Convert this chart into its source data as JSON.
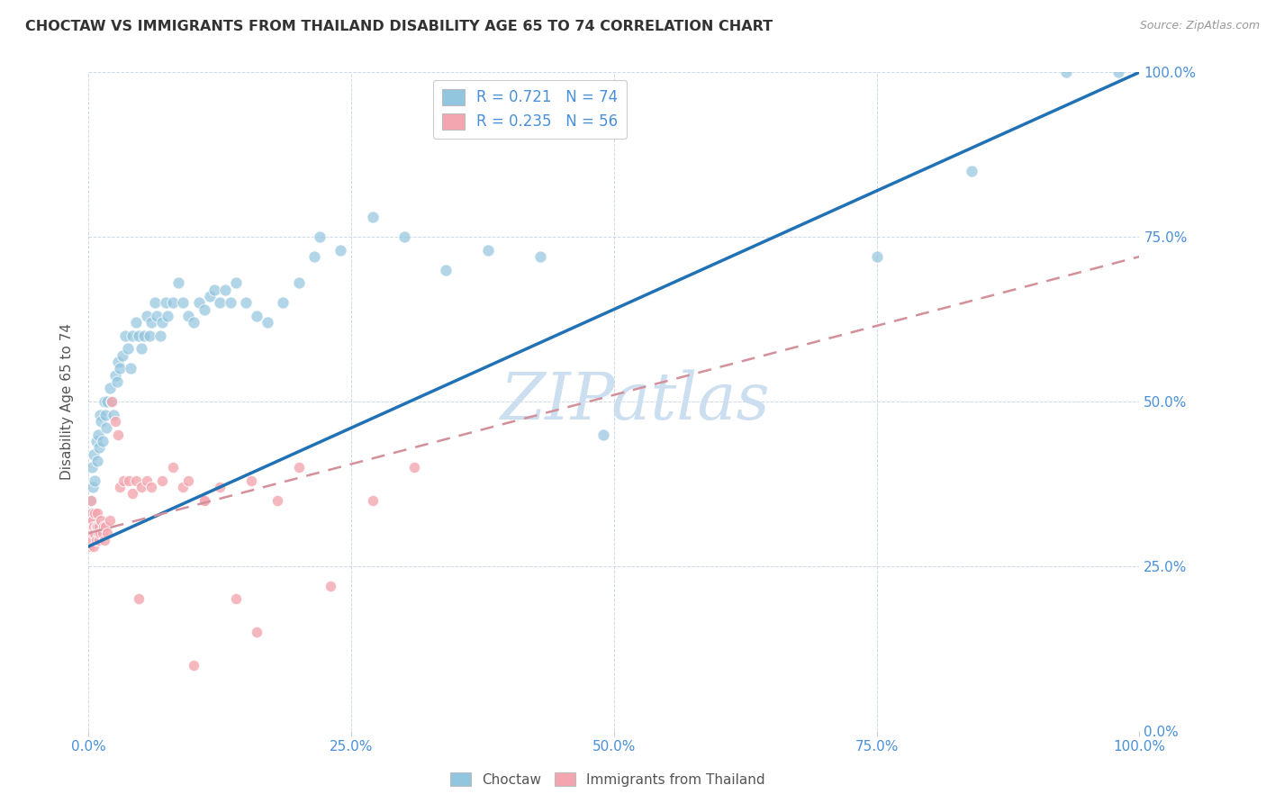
{
  "title": "CHOCTAW VS IMMIGRANTS FROM THAILAND DISABILITY AGE 65 TO 74 CORRELATION CHART",
  "source": "Source: ZipAtlas.com",
  "ylabel": "Disability Age 65 to 74",
  "xlim": [
    0,
    1.0
  ],
  "ylim": [
    0,
    1.0
  ],
  "ticks": [
    0.0,
    0.25,
    0.5,
    0.75,
    1.0
  ],
  "tick_labels": [
    "0.0%",
    "25.0%",
    "50.0%",
    "75.0%",
    "100.0%"
  ],
  "choctaw_color": "#92c5de",
  "thailand_color": "#f4a6b0",
  "choctaw_R": 0.721,
  "choctaw_N": 74,
  "thailand_R": 0.235,
  "thailand_N": 56,
  "choctaw_line_color": "#2171b5",
  "thailand_line_color": "#d4909a",
  "choctaw_line_x": [
    0.0,
    1.0
  ],
  "choctaw_line_y": [
    0.28,
    1.0
  ],
  "thailand_line_x": [
    0.0,
    1.0
  ],
  "thailand_line_y": [
    0.3,
    0.72
  ],
  "watermark": "ZIPatlas",
  "watermark_color": "#ccdff0",
  "choctaw_x": [
    0.001,
    0.002,
    0.003,
    0.003,
    0.004,
    0.005,
    0.006,
    0.007,
    0.008,
    0.009,
    0.01,
    0.011,
    0.012,
    0.013,
    0.015,
    0.016,
    0.017,
    0.018,
    0.02,
    0.022,
    0.024,
    0.025,
    0.027,
    0.028,
    0.03,
    0.032,
    0.035,
    0.037,
    0.04,
    0.042,
    0.045,
    0.048,
    0.05,
    0.053,
    0.055,
    0.058,
    0.06,
    0.063,
    0.065,
    0.068,
    0.07,
    0.073,
    0.075,
    0.08,
    0.085,
    0.09,
    0.095,
    0.1,
    0.105,
    0.11,
    0.115,
    0.12,
    0.125,
    0.13,
    0.135,
    0.14,
    0.15,
    0.16,
    0.17,
    0.185,
    0.2,
    0.215,
    0.22,
    0.24,
    0.27,
    0.3,
    0.34,
    0.38,
    0.43,
    0.49,
    0.75,
    0.84,
    0.93,
    0.98
  ],
  "choctaw_y": [
    0.3,
    0.35,
    0.33,
    0.4,
    0.37,
    0.42,
    0.38,
    0.44,
    0.41,
    0.45,
    0.43,
    0.48,
    0.47,
    0.44,
    0.5,
    0.48,
    0.46,
    0.5,
    0.52,
    0.5,
    0.48,
    0.54,
    0.53,
    0.56,
    0.55,
    0.57,
    0.6,
    0.58,
    0.55,
    0.6,
    0.62,
    0.6,
    0.58,
    0.6,
    0.63,
    0.6,
    0.62,
    0.65,
    0.63,
    0.6,
    0.62,
    0.65,
    0.63,
    0.65,
    0.68,
    0.65,
    0.63,
    0.62,
    0.65,
    0.64,
    0.66,
    0.67,
    0.65,
    0.67,
    0.65,
    0.68,
    0.65,
    0.63,
    0.62,
    0.65,
    0.68,
    0.72,
    0.75,
    0.73,
    0.78,
    0.75,
    0.7,
    0.73,
    0.72,
    0.45,
    0.72,
    0.85,
    1.0,
    1.0
  ],
  "thailand_x": [
    0.001,
    0.001,
    0.002,
    0.002,
    0.003,
    0.003,
    0.003,
    0.004,
    0.004,
    0.005,
    0.005,
    0.006,
    0.006,
    0.007,
    0.007,
    0.008,
    0.008,
    0.009,
    0.01,
    0.01,
    0.011,
    0.012,
    0.013,
    0.014,
    0.015,
    0.016,
    0.018,
    0.02,
    0.022,
    0.025,
    0.028,
    0.03,
    0.033,
    0.038,
    0.042,
    0.045,
    0.05,
    0.055,
    0.06,
    0.07,
    0.08,
    0.09,
    0.1,
    0.11,
    0.125,
    0.14,
    0.16,
    0.18,
    0.2,
    0.23,
    0.27,
    0.31,
    0.11,
    0.155,
    0.048,
    0.095
  ],
  "thailand_y": [
    0.3,
    0.28,
    0.31,
    0.35,
    0.32,
    0.29,
    0.33,
    0.3,
    0.32,
    0.31,
    0.28,
    0.3,
    0.33,
    0.31,
    0.29,
    0.31,
    0.33,
    0.3,
    0.31,
    0.29,
    0.3,
    0.32,
    0.3,
    0.31,
    0.29,
    0.31,
    0.3,
    0.32,
    0.5,
    0.47,
    0.45,
    0.37,
    0.38,
    0.38,
    0.36,
    0.38,
    0.37,
    0.38,
    0.37,
    0.38,
    0.4,
    0.37,
    0.1,
    0.35,
    0.37,
    0.2,
    0.15,
    0.35,
    0.4,
    0.22,
    0.35,
    0.4,
    0.35,
    0.38,
    0.2,
    0.38
  ]
}
